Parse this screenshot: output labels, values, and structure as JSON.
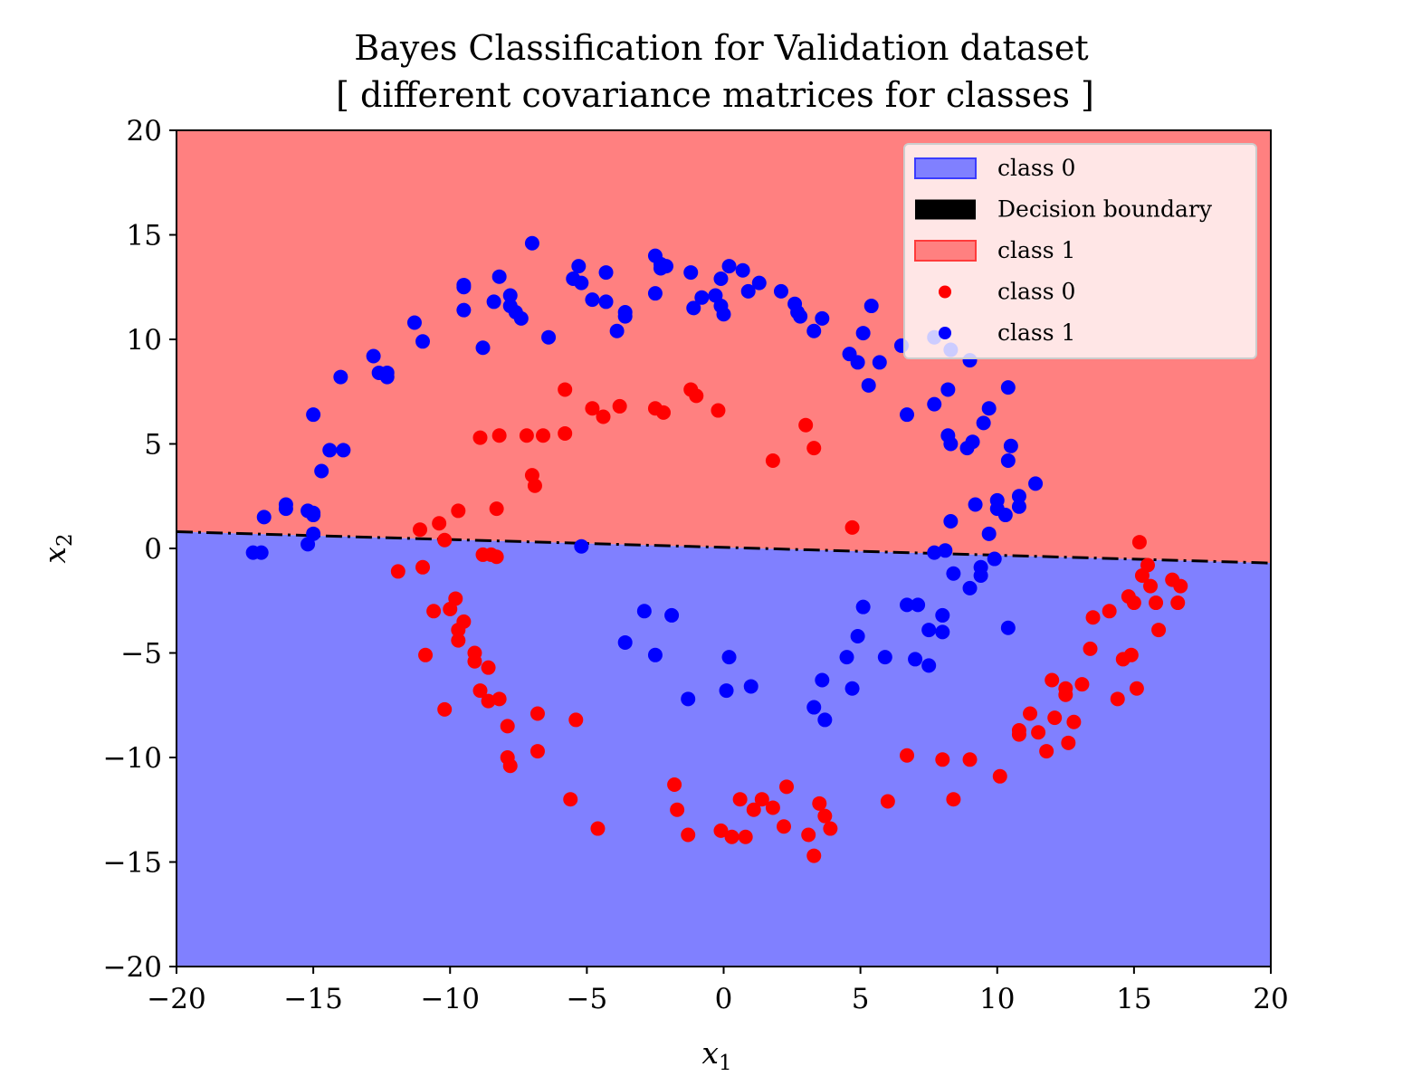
{
  "chart_data": {
    "type": "scatter",
    "title": "Bayes Classification for Validation dataset",
    "subtitle": "[ different covariance matrices for classes ]",
    "xlabel": "x",
    "xlabel_sub": "1",
    "ylabel": "x",
    "ylabel_sub": "2",
    "xlim": [
      -20,
      20
    ],
    "ylim": [
      -20,
      20
    ],
    "xticks": [
      -20,
      -15,
      -10,
      -5,
      0,
      5,
      10,
      15,
      20
    ],
    "yticks": [
      -20,
      -15,
      -10,
      -5,
      0,
      5,
      10,
      15,
      20
    ],
    "grid": false,
    "legend_position": "top-right",
    "colors": {
      "region_class1": "#ff8080",
      "region_class0": "#8080ff",
      "boundary": "#000000",
      "points_class0": "#ff0000",
      "points_class1": "#0000ff"
    },
    "decision_boundary": {
      "x": [
        -20,
        20
      ],
      "y": [
        0.8,
        -0.7
      ],
      "style": "dash-dot"
    },
    "regions": [
      {
        "name": "class 1",
        "side": "above"
      },
      {
        "name": "class 0",
        "side": "below"
      }
    ],
    "legend": [
      {
        "label": "class 0",
        "kind": "patch",
        "color": "#8080ff"
      },
      {
        "label": "Decision boundary",
        "kind": "patch",
        "color": "#000000"
      },
      {
        "label": "class 1",
        "kind": "patch",
        "color": "#ff8080"
      },
      {
        "label": "class 0",
        "kind": "marker",
        "color": "#ff0000"
      },
      {
        "label": "class 1",
        "kind": "marker",
        "color": "#0000ff"
      }
    ],
    "series": [
      {
        "name": "class 0",
        "color": "#ff0000",
        "points": [
          [
            -5.8,
            7.6
          ],
          [
            -4.8,
            6.7
          ],
          [
            -4.4,
            6.3
          ],
          [
            -3.8,
            6.8
          ],
          [
            -2.5,
            6.7
          ],
          [
            -2.2,
            6.5
          ],
          [
            -1.2,
            7.6
          ],
          [
            -1.0,
            7.3
          ],
          [
            -0.2,
            6.6
          ],
          [
            -5.8,
            5.5
          ],
          [
            -6.6,
            5.4
          ],
          [
            -7.2,
            5.4
          ],
          [
            -8.2,
            5.4
          ],
          [
            -8.9,
            5.3
          ],
          [
            -7.0,
            3.5
          ],
          [
            -6.9,
            3.0
          ],
          [
            1.8,
            4.2
          ],
          [
            3.0,
            5.9
          ],
          [
            3.3,
            4.8
          ],
          [
            4.7,
            1.0
          ],
          [
            -8.3,
            1.9
          ],
          [
            -9.7,
            1.8
          ],
          [
            -10.4,
            1.2
          ],
          [
            -11.1,
            0.9
          ],
          [
            -10.2,
            0.4
          ],
          [
            -8.8,
            -0.3
          ],
          [
            -8.5,
            -0.3
          ],
          [
            -8.3,
            -0.4
          ],
          [
            -11.9,
            -1.1
          ],
          [
            -11.0,
            -0.9
          ],
          [
            -10.0,
            -2.9
          ],
          [
            -9.8,
            -2.4
          ],
          [
            -10.6,
            -3.0
          ],
          [
            -9.5,
            -3.5
          ],
          [
            -9.7,
            -3.9
          ],
          [
            -9.7,
            -4.4
          ],
          [
            -10.9,
            -5.1
          ],
          [
            -9.1,
            -5.0
          ],
          [
            -9.1,
            -5.4
          ],
          [
            -8.6,
            -5.7
          ],
          [
            -8.9,
            -6.8
          ],
          [
            -8.6,
            -7.3
          ],
          [
            -8.2,
            -7.2
          ],
          [
            -10.2,
            -7.7
          ],
          [
            -6.8,
            -7.9
          ],
          [
            -5.4,
            -8.2
          ],
          [
            -7.9,
            -8.5
          ],
          [
            -6.8,
            -9.7
          ],
          [
            -7.9,
            -10.0
          ],
          [
            -7.8,
            -10.4
          ],
          [
            -5.6,
            -12.0
          ],
          [
            -4.6,
            -13.4
          ],
          [
            -1.8,
            -11.3
          ],
          [
            -1.7,
            -12.5
          ],
          [
            -1.3,
            -13.7
          ],
          [
            -0.1,
            -13.5
          ],
          [
            0.3,
            -13.8
          ],
          [
            0.6,
            -12.0
          ],
          [
            0.8,
            -13.8
          ],
          [
            1.1,
            -12.5
          ],
          [
            1.4,
            -12.0
          ],
          [
            1.8,
            -12.4
          ],
          [
            2.2,
            -13.3
          ],
          [
            2.3,
            -11.4
          ],
          [
            3.1,
            -13.7
          ],
          [
            3.3,
            -14.7
          ],
          [
            3.5,
            -12.2
          ],
          [
            3.7,
            -12.8
          ],
          [
            3.9,
            -13.4
          ],
          [
            6.0,
            -12.1
          ],
          [
            6.7,
            -9.9
          ],
          [
            8.0,
            -10.1
          ],
          [
            9.0,
            -10.1
          ],
          [
            8.4,
            -12.0
          ],
          [
            10.1,
            -10.9
          ],
          [
            10.8,
            -8.7
          ],
          [
            10.8,
            -8.9
          ],
          [
            11.2,
            -7.9
          ],
          [
            11.5,
            -8.8
          ],
          [
            11.8,
            -9.7
          ],
          [
            12.0,
            -6.3
          ],
          [
            12.1,
            -8.1
          ],
          [
            12.5,
            -6.7
          ],
          [
            12.5,
            -7.0
          ],
          [
            12.6,
            -9.3
          ],
          [
            12.8,
            -8.3
          ],
          [
            13.1,
            -6.5
          ],
          [
            13.4,
            -4.8
          ],
          [
            13.5,
            -3.3
          ],
          [
            14.1,
            -3.0
          ],
          [
            14.4,
            -7.2
          ],
          [
            14.6,
            -5.3
          ],
          [
            14.8,
            -2.3
          ],
          [
            14.9,
            -5.1
          ],
          [
            15.0,
            -2.6
          ],
          [
            15.1,
            -6.7
          ],
          [
            15.2,
            0.3
          ],
          [
            15.3,
            -1.3
          ],
          [
            15.5,
            -0.8
          ],
          [
            15.6,
            -1.8
          ],
          [
            15.8,
            -2.6
          ],
          [
            15.9,
            -3.9
          ],
          [
            16.4,
            -1.5
          ],
          [
            16.6,
            -2.6
          ],
          [
            16.7,
            -1.8
          ]
        ]
      },
      {
        "name": "class 1",
        "color": "#0000ff",
        "points": [
          [
            -7.0,
            14.6
          ],
          [
            -5.3,
            13.5
          ],
          [
            -4.3,
            13.2
          ],
          [
            -5.5,
            12.9
          ],
          [
            -5.2,
            12.7
          ],
          [
            -4.8,
            11.9
          ],
          [
            -4.3,
            11.8
          ],
          [
            -3.6,
            11.3
          ],
          [
            -3.6,
            11.1
          ],
          [
            -3.9,
            10.4
          ],
          [
            -2.5,
            14.0
          ],
          [
            -2.3,
            13.6
          ],
          [
            -2.3,
            13.4
          ],
          [
            -2.1,
            13.5
          ],
          [
            -2.5,
            12.2
          ],
          [
            -1.2,
            13.2
          ],
          [
            -0.8,
            12.0
          ],
          [
            -0.3,
            12.1
          ],
          [
            -1.1,
            11.5
          ],
          [
            0.2,
            13.5
          ],
          [
            0.7,
            13.3
          ],
          [
            1.3,
            12.7
          ],
          [
            0.9,
            12.3
          ],
          [
            -0.1,
            12.9
          ],
          [
            -0.1,
            11.6
          ],
          [
            0.0,
            11.2
          ],
          [
            2.1,
            12.3
          ],
          [
            2.6,
            11.7
          ],
          [
            2.7,
            11.3
          ],
          [
            2.8,
            11.1
          ],
          [
            3.3,
            10.4
          ],
          [
            3.6,
            11.0
          ],
          [
            4.6,
            9.3
          ],
          [
            4.9,
            8.9
          ],
          [
            5.1,
            10.3
          ],
          [
            5.4,
            11.6
          ],
          [
            5.7,
            8.9
          ],
          [
            5.3,
            7.8
          ],
          [
            6.5,
            9.7
          ],
          [
            7.7,
            10.1
          ],
          [
            8.3,
            9.5
          ],
          [
            9.0,
            9.0
          ],
          [
            6.7,
            6.4
          ],
          [
            7.7,
            6.9
          ],
          [
            8.2,
            7.6
          ],
          [
            8.2,
            5.4
          ],
          [
            8.3,
            5.0
          ],
          [
            8.9,
            4.8
          ],
          [
            9.1,
            5.1
          ],
          [
            9.5,
            6.0
          ],
          [
            9.7,
            6.7
          ],
          [
            10.4,
            7.7
          ],
          [
            10.5,
            4.9
          ],
          [
            10.4,
            4.2
          ],
          [
            11.4,
            3.1
          ],
          [
            10.8,
            2.5
          ],
          [
            10.0,
            2.3
          ],
          [
            10.0,
            1.9
          ],
          [
            10.8,
            2.0
          ],
          [
            10.3,
            1.6
          ],
          [
            9.2,
            2.1
          ],
          [
            8.3,
            1.3
          ],
          [
            9.7,
            0.7
          ],
          [
            7.7,
            -0.2
          ],
          [
            8.1,
            -0.1
          ],
          [
            9.9,
            -0.5
          ],
          [
            9.4,
            -0.9
          ],
          [
            9.4,
            -1.3
          ],
          [
            8.4,
            -1.2
          ],
          [
            9.0,
            -1.9
          ],
          [
            8.0,
            -3.2
          ],
          [
            7.5,
            -3.9
          ],
          [
            8.0,
            -4.0
          ],
          [
            10.4,
            -3.8
          ],
          [
            6.7,
            -2.7
          ],
          [
            7.1,
            -2.7
          ],
          [
            7.0,
            -5.3
          ],
          [
            7.5,
            -5.6
          ],
          [
            5.1,
            -2.8
          ],
          [
            4.9,
            -4.2
          ],
          [
            4.5,
            -5.2
          ],
          [
            4.7,
            -6.7
          ],
          [
            5.9,
            -5.2
          ],
          [
            3.6,
            -6.3
          ],
          [
            3.3,
            -7.6
          ],
          [
            3.7,
            -8.2
          ],
          [
            -2.9,
            -3.0
          ],
          [
            -1.9,
            -3.2
          ],
          [
            -3.6,
            -4.5
          ],
          [
            -2.5,
            -5.1
          ],
          [
            -1.3,
            -7.2
          ],
          [
            0.2,
            -5.2
          ],
          [
            0.1,
            -6.8
          ],
          [
            1.0,
            -6.6
          ],
          [
            -5.2,
            0.1
          ],
          [
            -6.4,
            10.1
          ],
          [
            -7.6,
            11.3
          ],
          [
            -7.4,
            11.0
          ],
          [
            -7.8,
            11.6
          ],
          [
            -7.8,
            12.1
          ],
          [
            -8.2,
            13.0
          ],
          [
            -8.4,
            11.8
          ],
          [
            -9.5,
            11.4
          ],
          [
            -9.5,
            12.5
          ],
          [
            -9.5,
            12.6
          ],
          [
            -8.8,
            9.6
          ],
          [
            -11.0,
            9.9
          ],
          [
            -11.3,
            10.8
          ],
          [
            -12.8,
            9.2
          ],
          [
            -12.6,
            8.4
          ],
          [
            -12.3,
            8.2
          ],
          [
            -12.3,
            8.4
          ],
          [
            -14.0,
            8.2
          ],
          [
            -15.0,
            6.4
          ],
          [
            -14.4,
            4.7
          ],
          [
            -13.9,
            4.7
          ],
          [
            -14.7,
            3.7
          ],
          [
            -16.0,
            2.1
          ],
          [
            -16.0,
            1.9
          ],
          [
            -16.8,
            1.5
          ],
          [
            -15.2,
            1.8
          ],
          [
            -15.0,
            1.7
          ],
          [
            -15.0,
            1.6
          ],
          [
            -15.0,
            0.7
          ],
          [
            -15.2,
            0.2
          ],
          [
            -17.2,
            -0.2
          ],
          [
            -16.9,
            -0.2
          ]
        ]
      }
    ]
  }
}
